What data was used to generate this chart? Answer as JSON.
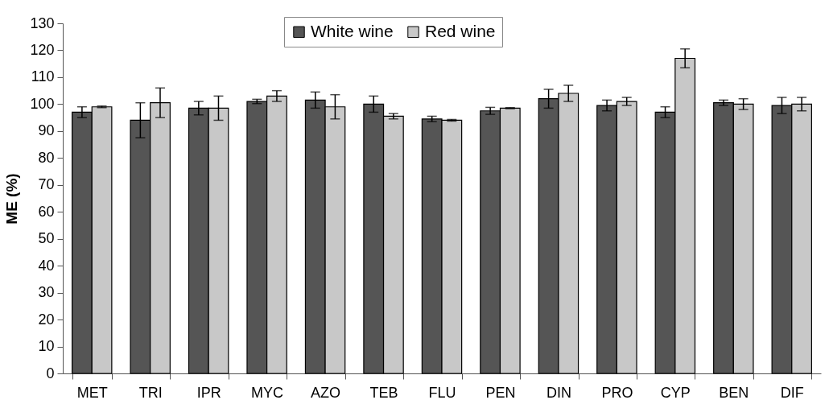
{
  "chart_data": {
    "type": "bar",
    "ylabel": "ME (%)",
    "categories": [
      "MET",
      "TRI",
      "IPR",
      "MYC",
      "AZO",
      "TEB",
      "FLU",
      "PEN",
      "DIN",
      "PRO",
      "CYP",
      "BEN",
      "DIF"
    ],
    "series": [
      {
        "name": "White wine",
        "color": "#555555",
        "values": [
          97,
          94,
          98.5,
          101,
          101.5,
          100,
          94.5,
          97.5,
          102,
          99.5,
          97,
          100.5,
          99.5
        ],
        "errors": [
          2,
          6.5,
          2.5,
          0.8,
          3,
          3,
          1,
          1.3,
          3.5,
          2,
          2,
          1,
          3
        ]
      },
      {
        "name": "Red wine",
        "color": "#c8c8c8",
        "values": [
          99,
          100.5,
          98.5,
          103,
          99,
          95.5,
          94,
          98.5,
          104,
          101,
          117,
          100,
          100
        ],
        "errors": [
          0.3,
          5.5,
          4.5,
          2,
          4.5,
          1,
          0.3,
          0.2,
          3,
          1.5,
          3.5,
          2,
          2.5
        ]
      }
    ],
    "ylim": [
      0,
      130
    ],
    "yticks": [
      0,
      10,
      20,
      30,
      40,
      50,
      60,
      70,
      80,
      90,
      100,
      110,
      120,
      130
    ],
    "grid": false,
    "legend": "top"
  }
}
